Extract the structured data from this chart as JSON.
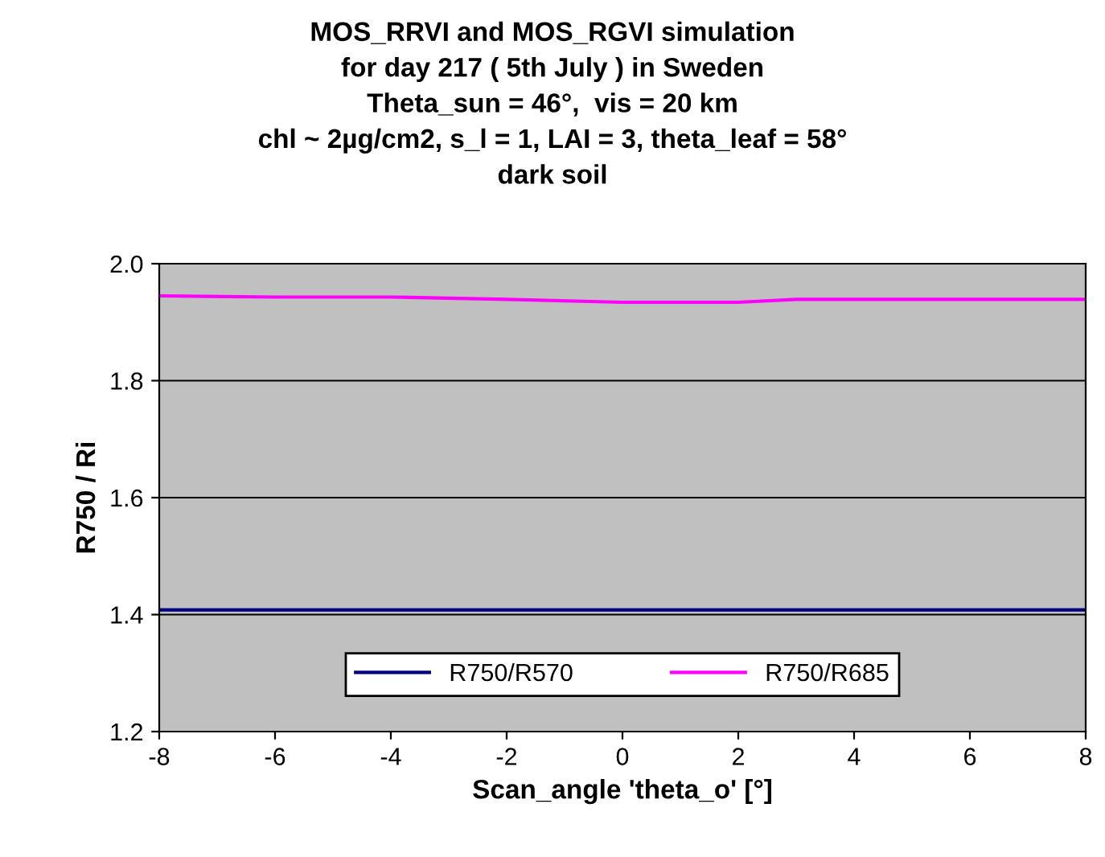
{
  "chart_data": {
    "type": "line",
    "title": "MOS_RRVI and MOS_RGVI simulation\nfor day 217 ( 5th July ) in Sweden\nTheta_sun = 46°,  vis = 20 km\nchl ~ 2µg/cm2, s_l = 1, LAI = 3, theta_leaf = 58°\ndark soil",
    "xlabel": "Scan_angle 'theta_o' [°]",
    "ylabel": "R750 / Ri",
    "x": [
      -8,
      -6,
      -4,
      -2,
      0,
      2,
      3,
      4,
      6,
      8
    ],
    "series": [
      {
        "name": "R750/R570",
        "color": "#000080",
        "values": [
          1.408,
          1.408,
          1.408,
          1.408,
          1.408,
          1.408,
          1.408,
          1.408,
          1.408,
          1.408
        ]
      },
      {
        "name": "R750/R685",
        "color": "#ff00ff",
        "values": [
          1.945,
          1.943,
          1.943,
          1.939,
          1.934,
          1.934,
          1.939,
          1.939,
          1.939,
          1.939
        ]
      }
    ],
    "xlim": [
      -8,
      8
    ],
    "xticks": [
      -8,
      -6,
      -4,
      -2,
      0,
      2,
      4,
      6,
      8
    ],
    "ylim": [
      1.2,
      2.0
    ],
    "yticks": [
      {
        "value": 1.2,
        "label": "1.2"
      },
      {
        "value": 1.4,
        "label": "1.4"
      },
      {
        "value": 1.6,
        "label": "1.6"
      },
      {
        "value": 1.8,
        "label": "1.8"
      },
      {
        "value": 2.0,
        "label": "2.0"
      }
    ],
    "grid": "y",
    "legend": "bottom",
    "marker": "none",
    "line_style": "solid"
  }
}
